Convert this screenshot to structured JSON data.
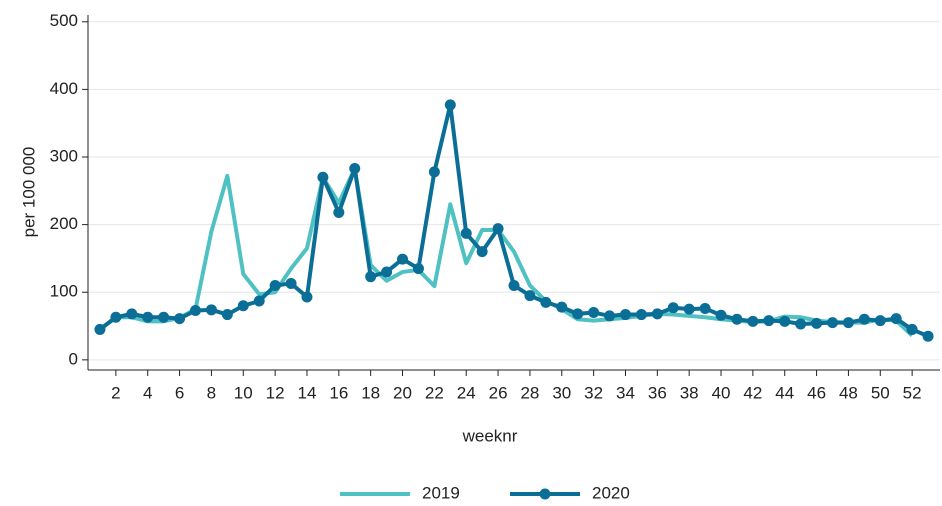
{
  "chart_data": {
    "type": "line",
    "x": [
      1,
      2,
      3,
      4,
      5,
      6,
      7,
      8,
      9,
      10,
      11,
      12,
      13,
      14,
      15,
      16,
      17,
      18,
      19,
      20,
      21,
      22,
      23,
      24,
      25,
      26,
      27,
      28,
      29,
      30,
      31,
      32,
      33,
      34,
      35,
      36,
      37,
      38,
      39,
      40,
      41,
      42,
      43,
      44,
      45,
      46,
      47,
      48,
      49,
      50,
      51,
      52,
      53
    ],
    "series": [
      {
        "name": "2019",
        "color": "#4fc1c2",
        "marker": false,
        "values": [
          45,
          63,
          63,
          57,
          57,
          62,
          75,
          190,
          272,
          127,
          97,
          100,
          135,
          165,
          270,
          232,
          283,
          140,
          117,
          130,
          133,
          109,
          230,
          143,
          192,
          192,
          160,
          110,
          87,
          75,
          60,
          58,
          60,
          62,
          65,
          68,
          67,
          65,
          63,
          60,
          58,
          56,
          57,
          64,
          63,
          58,
          56,
          55,
          55,
          60,
          58,
          36,
          null
        ]
      },
      {
        "name": "2020",
        "color": "#0b6e96",
        "marker": true,
        "values": [
          45,
          63,
          68,
          63,
          63,
          61,
          73,
          74,
          67,
          80,
          87,
          110,
          113,
          93,
          270,
          218,
          283,
          123,
          130,
          149,
          135,
          278,
          377,
          187,
          160,
          194,
          110,
          95,
          85,
          78,
          68,
          70,
          65,
          67,
          67,
          68,
          77,
          75,
          76,
          66,
          60,
          57,
          58,
          57,
          53,
          54,
          55,
          55,
          60,
          58,
          61,
          45,
          35
        ]
      }
    ],
    "xlabel": "weeknr",
    "ylabel": "per 100 000",
    "xlim": [
      0.25,
      53.75
    ],
    "ylim": [
      -15,
      510
    ],
    "xticks": [
      2,
      4,
      6,
      8,
      10,
      12,
      14,
      16,
      18,
      20,
      22,
      24,
      26,
      28,
      30,
      32,
      34,
      36,
      38,
      40,
      42,
      44,
      46,
      48,
      50,
      52
    ],
    "yticks": [
      0,
      100,
      200,
      300,
      400,
      500
    ],
    "grid": true,
    "legend": "bottom"
  }
}
